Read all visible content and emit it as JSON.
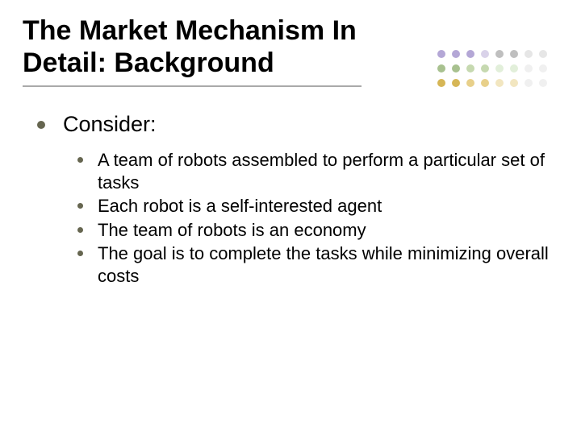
{
  "title": "The Market Mechanism In Detail: Background",
  "level1_text": "Consider:",
  "sub_items": [
    "A team of robots assembled to perform a particular set of tasks",
    "Each robot is a self-interested agent",
    "The team of robots is an economy",
    "The goal is to complete the tasks while minimizing overall costs"
  ],
  "title_underline_color": "#aaaaaa",
  "bullet_color": "#666650",
  "title_fontsize": 34,
  "level1_fontsize": 27,
  "level2_fontsize": 22,
  "background_color": "#ffffff",
  "dots": {
    "rows": 3,
    "cols": 8,
    "size": 10,
    "colors": [
      [
        "#b4a7d6",
        "#b4a7d6",
        "#b4a7d6",
        "#d9d2e9",
        "#bfbfbf",
        "#bfbfbf",
        "#e6e6e6",
        "#e6e6e6"
      ],
      [
        "#a8c18f",
        "#a8c18f",
        "#c6d9b0",
        "#c6d9b0",
        "#e2efda",
        "#e2efda",
        "#f0f0f0",
        "#f0f0f0"
      ],
      [
        "#d6b656",
        "#d6b656",
        "#e8d08a",
        "#e8d08a",
        "#f2e6c0",
        "#f2e6c0",
        "#f0f0f0",
        "#f0f0f0"
      ]
    ]
  }
}
